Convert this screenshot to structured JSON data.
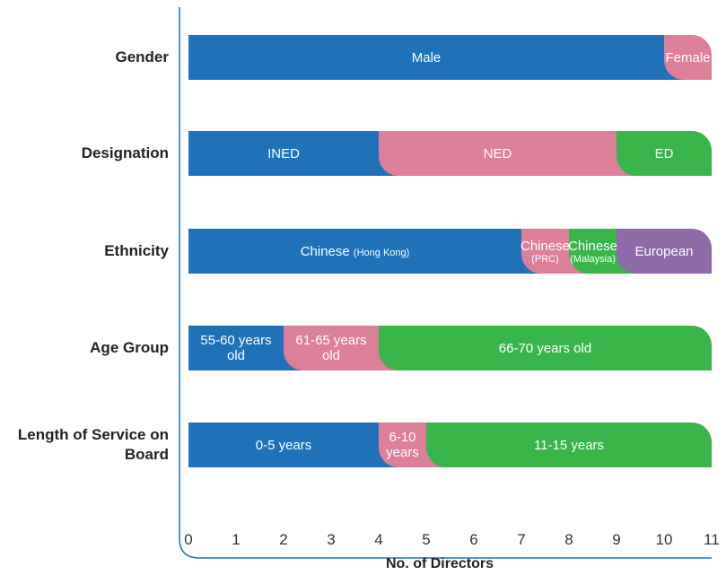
{
  "chart_data": {
    "type": "stacked_bar",
    "orientation": "horizontal",
    "x_label": "No. of Directors",
    "xlim": [
      0,
      11
    ],
    "xticks": [
      0,
      1,
      2,
      3,
      4,
      5,
      6,
      7,
      8,
      9,
      10,
      11
    ],
    "bars": [
      {
        "category": "Gender",
        "segments": [
          {
            "label": "Male",
            "value": 10,
            "color": "#1f72b8"
          },
          {
            "label": "Female",
            "value": 1,
            "color": "#dc7f98"
          }
        ]
      },
      {
        "category": "Designation",
        "segments": [
          {
            "label": "INED",
            "value": 4,
            "color": "#1f72b8"
          },
          {
            "label": "NED",
            "value": 5,
            "color": "#dc7f98"
          },
          {
            "label": "ED",
            "value": 2,
            "color": "#3ab54a"
          }
        ]
      },
      {
        "category": "Ethnicity",
        "segments": [
          {
            "label": "Chinese",
            "note": "(Hong Kong)",
            "value": 7,
            "color": "#1f72b8"
          },
          {
            "label": "Chinese",
            "note": "(PRC)",
            "value": 1,
            "color": "#dc7f98"
          },
          {
            "label": "Chinese",
            "note": "(Malaysia)",
            "value": 1,
            "color": "#3ab54a"
          },
          {
            "label": "European",
            "value": 2,
            "color": "#8e6aa8"
          }
        ]
      },
      {
        "category": "Age Group",
        "segments": [
          {
            "label": "55-60 years old",
            "value": 2,
            "color": "#1f72b8"
          },
          {
            "label": "61-65 years old",
            "value": 2,
            "color": "#dc7f98"
          },
          {
            "label": "66-70 years old",
            "value": 7,
            "color": "#3ab54a"
          }
        ]
      },
      {
        "category": "Length of Service on Board",
        "segments": [
          {
            "label": "0-5 years",
            "value": 4,
            "color": "#1f72b8"
          },
          {
            "label": "6-10 years",
            "value": 1,
            "color": "#dc7f98"
          },
          {
            "label": "11-15 years",
            "value": 6,
            "color": "#3ab54a"
          }
        ]
      }
    ]
  }
}
